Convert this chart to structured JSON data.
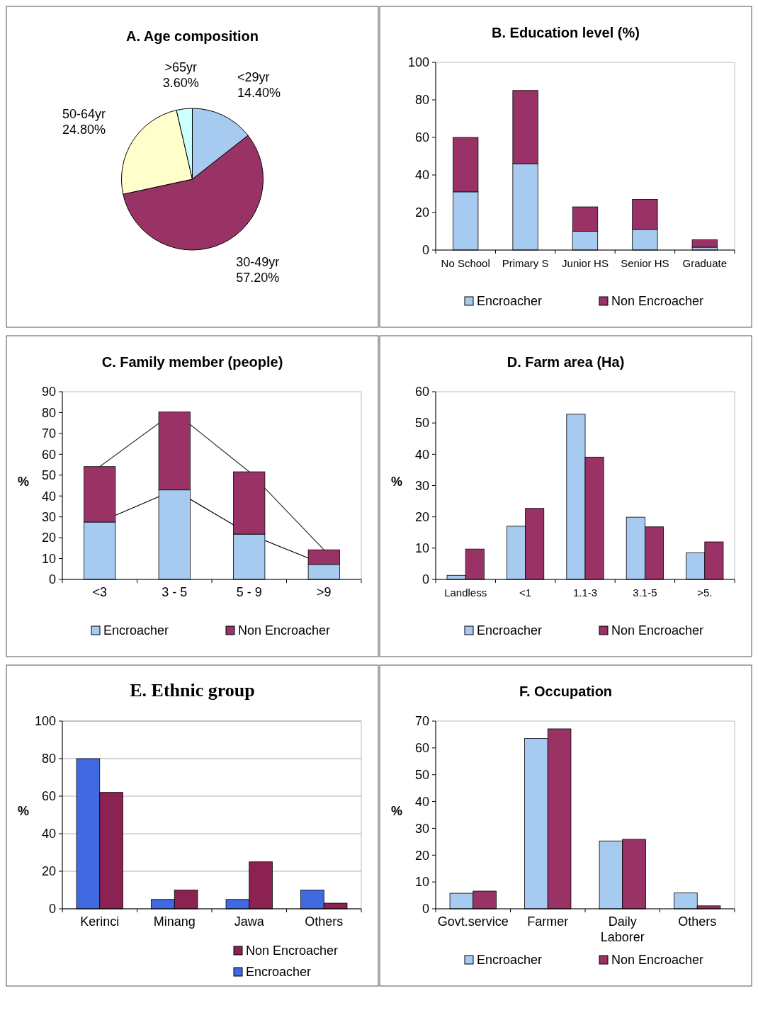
{
  "chart_data": [
    {
      "type": "pie",
      "title": "A. Age composition",
      "categories": [
        "<29yr",
        "30-49yr",
        "50-64yr",
        ">65yr"
      ],
      "values": [
        14.4,
        57.2,
        24.8,
        3.6
      ],
      "colors": [
        "#a6caf0",
        "#993366",
        "#ffffcc",
        "#ccffff"
      ],
      "value_labels": [
        "14.40%",
        "57.20%",
        "24.80%",
        "3.60%"
      ]
    },
    {
      "type": "bar",
      "title": "B. Education level (%)",
      "categories": [
        "No School",
        "Primary S",
        "Junior HS",
        "Senior HS",
        "Graduate"
      ],
      "stacked": true,
      "series": [
        {
          "name": "Encroacher",
          "color": "#a6caf0",
          "values": [
            31,
            46,
            10,
            11,
            1.5
          ]
        },
        {
          "name": "Non Encroacher",
          "color": "#993366",
          "values": [
            29,
            39,
            13,
            16,
            4
          ]
        }
      ],
      "ylim": [
        0,
        100
      ],
      "yticks": [
        0,
        20,
        40,
        60,
        80,
        100
      ],
      "legend": "bottom"
    },
    {
      "type": "bar",
      "title": "C. Family member (people)",
      "ylabel": "%",
      "categories": [
        "<3",
        "3 - 5",
        "5 - 9",
        ">9"
      ],
      "stacked": true,
      "series": [
        {
          "name": "Encroacher",
          "color": "#a6caf0",
          "values": [
            27.5,
            42.9,
            21.7,
            7.2
          ]
        },
        {
          "name": "Non Encroacher",
          "color": "#993366",
          "values": [
            26.6,
            37.4,
            29.9,
            7
          ]
        },
        {
          "type": "line",
          "color": "#000000",
          "values": [
            27.5,
            42.9,
            21.7,
            7.2
          ]
        },
        {
          "type": "line",
          "color": "#333333",
          "values": [
            54.1,
            80.3,
            51.6,
            14.2
          ]
        }
      ],
      "ylim": [
        0,
        90
      ],
      "yticks": [
        0,
        10,
        20,
        30,
        40,
        50,
        60,
        70,
        80,
        90
      ],
      "legend": "bottom"
    },
    {
      "type": "bar",
      "title": "D. Farm area (Ha)",
      "ylabel": "%",
      "categories": [
        "Landless",
        "<1",
        "1.1-3",
        "3.1-5",
        ">5."
      ],
      "series": [
        {
          "name": "Encroacher",
          "color": "#a6caf0",
          "values": [
            1.3,
            17,
            52.8,
            19.9,
            8.5
          ]
        },
        {
          "name": "Non Encroacher",
          "color": "#993366",
          "values": [
            9.7,
            22.7,
            39.1,
            16.8,
            12
          ]
        }
      ],
      "ylim": [
        0,
        60
      ],
      "yticks": [
        0,
        10,
        20,
        30,
        40,
        50,
        60
      ],
      "legend": "bottom"
    },
    {
      "type": "bar",
      "title": "E. Ethnic group",
      "ylabel": "%",
      "categories": [
        "Kerinci",
        "Minang",
        "Jawa",
        "Others"
      ],
      "series": [
        {
          "name": "Encroacher",
          "color": "#4169e1",
          "values": [
            80,
            5,
            5,
            10
          ]
        },
        {
          "name": "Non Encroacher",
          "color": "#8b2252",
          "values": [
            62,
            10,
            25,
            3
          ]
        }
      ],
      "ylim": [
        0,
        100
      ],
      "yticks": [
        0,
        20,
        40,
        60,
        80,
        100
      ],
      "grid": "y",
      "legend": "bottom right"
    },
    {
      "type": "bar",
      "title": "F. Occupation",
      "ylabel": "%",
      "categories": [
        "Govt.service",
        "Farmer",
        "Daily Laborer",
        "Others"
      ],
      "series": [
        {
          "name": "Encroacher",
          "color": "#a6caf0",
          "values": [
            5.8,
            63.5,
            25.3,
            5.9
          ]
        },
        {
          "name": "Non Encroacher",
          "color": "#993366",
          "values": [
            6.6,
            67.1,
            25.9,
            1.1
          ]
        }
      ],
      "ylim": [
        0,
        70
      ],
      "yticks": [
        0,
        10,
        20,
        30,
        40,
        50,
        60,
        70
      ],
      "legend": "bottom"
    }
  ]
}
